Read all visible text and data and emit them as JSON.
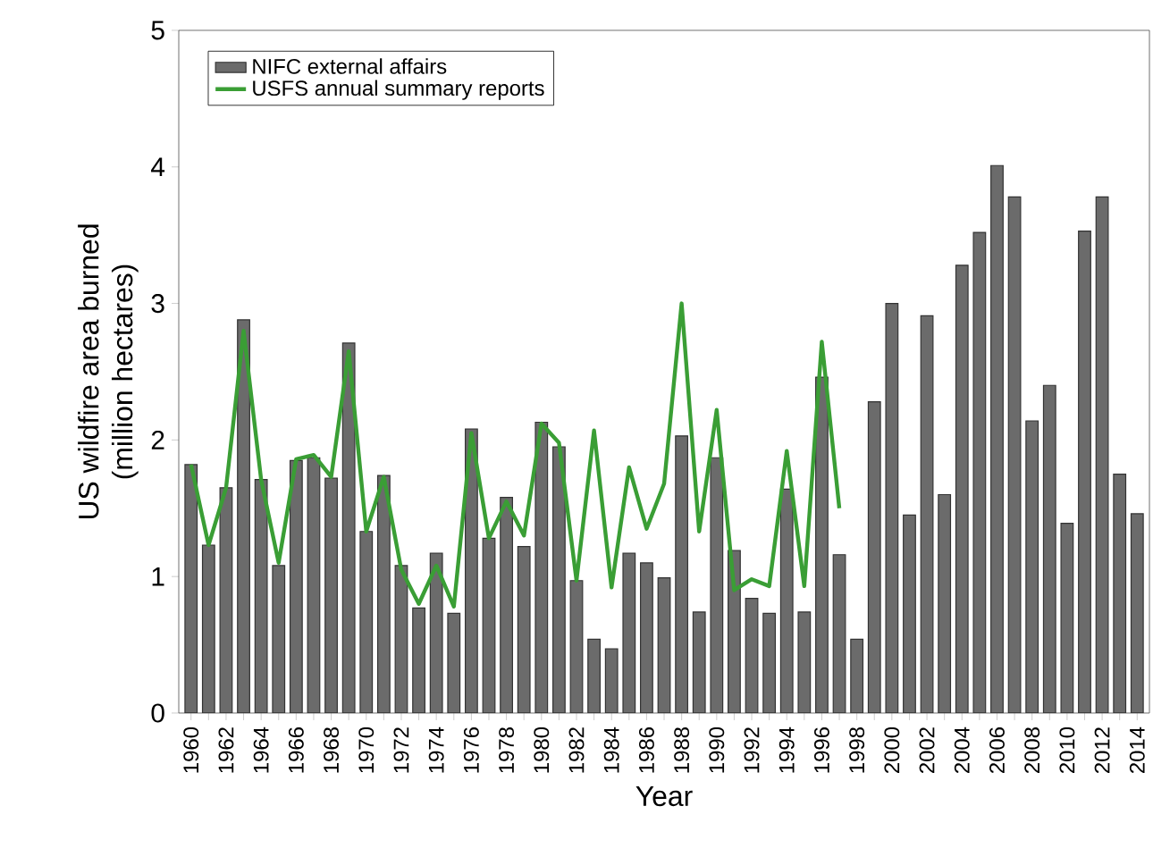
{
  "chart_data": {
    "type": "bar",
    "xlabel": "Year",
    "ylabel": "US wildfire area burned\n(million hectares)",
    "categories": [
      "1960",
      null,
      "1962",
      null,
      "1964",
      null,
      "1966",
      null,
      "1968",
      null,
      "1970",
      null,
      "1972",
      null,
      "1974",
      null,
      "1976",
      null,
      "1978",
      null,
      "1980",
      null,
      "1982",
      null,
      "1984",
      null,
      "1986",
      null,
      "1988",
      null,
      "1990",
      null,
      "1992",
      null,
      "1994",
      null,
      "1996",
      null,
      "1998",
      null,
      "2000",
      null,
      "2002",
      null,
      "2004",
      null,
      "2006",
      null,
      "2008",
      null,
      "2010",
      null,
      "2012",
      null,
      "2014"
    ],
    "series": [
      {
        "name": "NIFC external affairs",
        "color": "#6b6b6b",
        "values": [
          1.82,
          1.23,
          1.65,
          2.88,
          1.71,
          1.08,
          1.85,
          1.87,
          1.72,
          2.71,
          1.33,
          1.74,
          1.08,
          0.77,
          1.17,
          0.73,
          2.08,
          1.28,
          1.58,
          1.22,
          2.13,
          1.95,
          0.97,
          0.54,
          0.47,
          1.17,
          1.1,
          0.99,
          2.03,
          0.74,
          1.87,
          1.19,
          0.84,
          0.73,
          1.64,
          0.74,
          2.46,
          1.16,
          0.54,
          2.28,
          3.0,
          1.45,
          2.91,
          1.6,
          3.28,
          3.52,
          4.01,
          3.78,
          2.14,
          2.4,
          1.39,
          3.53,
          3.78,
          1.75,
          1.46
        ]
      },
      {
        "name": "USFS annual summary reports",
        "type": "line",
        "color": "#3a9e35",
        "values": [
          1.82,
          1.23,
          1.65,
          2.8,
          1.71,
          1.1,
          1.86,
          1.89,
          1.73,
          2.65,
          1.33,
          1.73,
          1.05,
          0.8,
          1.08,
          0.78,
          2.05,
          1.28,
          1.55,
          1.3,
          2.12,
          1.98,
          0.97,
          2.07,
          0.92,
          1.8,
          1.35,
          1.68,
          3.0,
          1.33,
          2.22,
          0.9,
          0.98,
          0.93,
          1.92,
          0.93,
          2.72,
          1.5,
          null,
          null,
          null,
          null,
          null,
          null,
          null,
          null,
          null,
          null,
          null,
          null,
          null,
          null,
          null,
          null,
          null
        ]
      }
    ],
    "ylim": [
      0,
      5
    ],
    "yticks": [
      0,
      1,
      2,
      3,
      4,
      5
    ],
    "grid": false,
    "legend": "top left"
  }
}
